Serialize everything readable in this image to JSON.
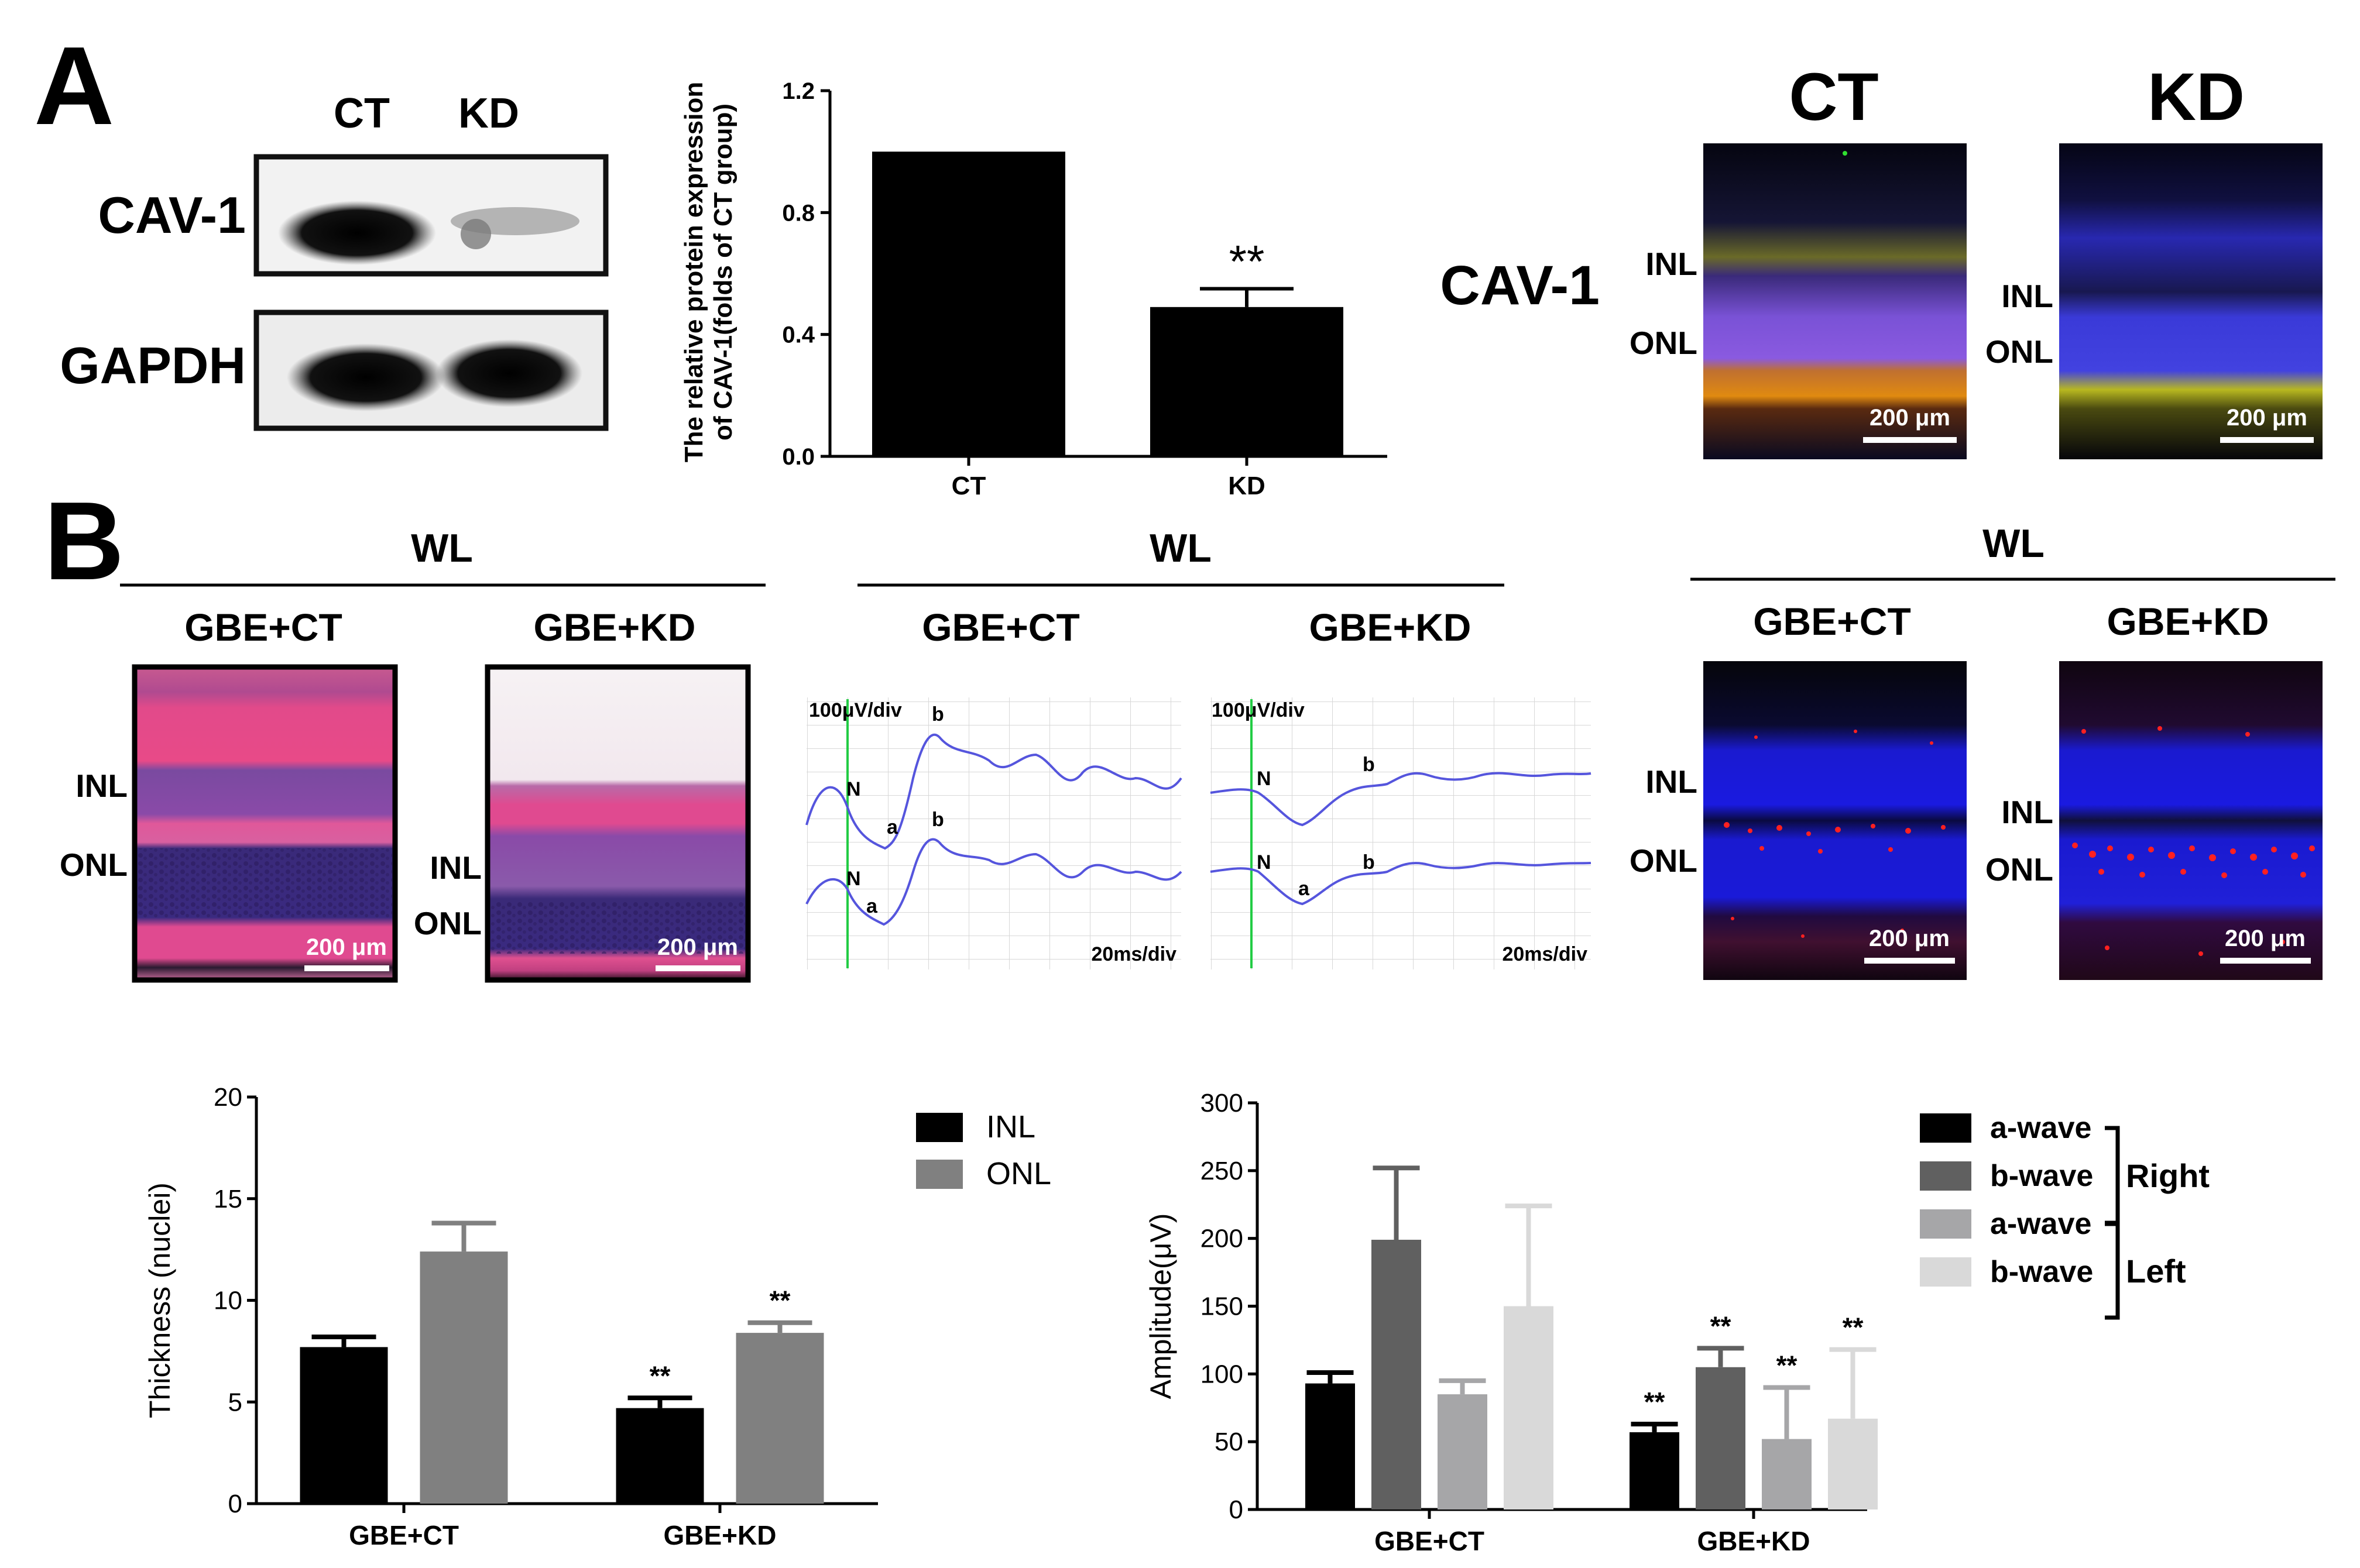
{
  "panelA": {
    "label": "A",
    "blot": {
      "col_ct": "CT",
      "col_kd": "KD",
      "row_cav1": "CAV-1",
      "row_gapdh": "GAPDH"
    },
    "chart_data": {
      "type": "bar",
      "categories": [
        "CT",
        "KD"
      ],
      "values": [
        1.0,
        0.49
      ],
      "errors": [
        0,
        0.06
      ],
      "significance": [
        "",
        "**"
      ],
      "ylabel_line1": "The relative protein expression",
      "ylabel_line2": "of CAV-1(folds of CT group)",
      "ylim": [
        0.0,
        1.2
      ],
      "yticks": [
        "0.0",
        "0.4",
        "0.8",
        "1.2"
      ],
      "color": "#000000"
    },
    "if_images": {
      "col_ct": "CT",
      "col_kd": "KD",
      "row_label": "CAV-1",
      "inl": "INL",
      "onl": "ONL",
      "scale": "200 μm"
    }
  },
  "panelB": {
    "label": "B",
    "he": {
      "header": "WL",
      "col_ct": "GBE+CT",
      "col_kd": "GBE+KD",
      "inl": "INL",
      "onl": "ONL",
      "scale": "200 μm"
    },
    "erg": {
      "header": "WL",
      "col_ct": "GBE+CT",
      "col_kd": "GBE+KD",
      "volt_div": "100μV/div",
      "time_div": "20ms/div",
      "mark_n": "N",
      "mark_a": "a",
      "mark_b": "b"
    },
    "tunel": {
      "header": "WL",
      "col_ct": "GBE+CT",
      "col_kd": "GBE+KD",
      "inl": "INL",
      "onl": "ONL",
      "scale": "200 μm"
    },
    "thickness_chart": {
      "chart_data": {
        "type": "bar",
        "categories": [
          "GBE+CT",
          "GBE+KD"
        ],
        "series": [
          {
            "name": "INL",
            "color": "#000000",
            "values": [
              7.7,
              4.7
            ],
            "errors": [
              0.5,
              0.5
            ],
            "significance": [
              "",
              "**"
            ]
          },
          {
            "name": "ONL",
            "color": "#808080",
            "values": [
              12.4,
              8.4
            ],
            "errors": [
              1.4,
              0.5
            ],
            "significance": [
              "",
              "**"
            ]
          }
        ],
        "ylabel": "Thickness (nuclei)",
        "ylim": [
          0,
          20
        ],
        "yticks": [
          "0",
          "5",
          "10",
          "15",
          "20"
        ]
      }
    },
    "amplitude_chart": {
      "chart_data": {
        "type": "bar",
        "categories": [
          "GBE+CT",
          "GBE+KD"
        ],
        "series": [
          {
            "name": "a-wave",
            "group": "Right",
            "color": "#000000",
            "values": [
              93,
              57
            ],
            "errors": [
              8,
              6
            ],
            "significance": [
              "",
              "**"
            ]
          },
          {
            "name": "b-wave",
            "group": "Right",
            "color": "#606060",
            "values": [
              199,
              105
            ],
            "errors": [
              53,
              14
            ],
            "significance": [
              "",
              "**"
            ]
          },
          {
            "name": "a-wave",
            "group": "Left",
            "color": "#a6a6a8",
            "values": [
              85,
              52
            ],
            "errors": [
              10,
              38
            ],
            "significance": [
              "",
              "**"
            ]
          },
          {
            "name": "b-wave",
            "group": "Left",
            "color": "#d9d9d9",
            "values": [
              150,
              67
            ],
            "errors": [
              74,
              51
            ],
            "significance": [
              "",
              "**"
            ]
          }
        ],
        "ylabel": "Amplitude(μV)",
        "ylim": [
          0,
          300
        ],
        "yticks": [
          "0",
          "50",
          "100",
          "150",
          "200",
          "250",
          "300"
        ],
        "legend_groups": [
          "Right",
          "Left"
        ]
      }
    }
  }
}
